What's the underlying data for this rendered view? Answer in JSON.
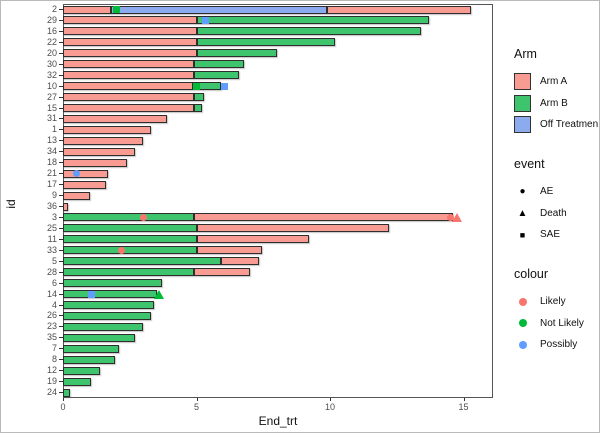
{
  "axes": {
    "x_title": "End_trt",
    "y_title": "id"
  },
  "glyphs": {
    "circle": "●",
    "triangle": "▲",
    "square": "■"
  },
  "legend": {
    "arm": {
      "title": "Arm",
      "items": [
        {
          "label": "Arm A",
          "color": "#F89B92"
        },
        {
          "label": "Arm B",
          "color": "#3EC46C"
        },
        {
          "label": "Off Treatmen",
          "color": "#8CABEF"
        }
      ]
    },
    "event": {
      "title": "event",
      "items": [
        {
          "label": "AE",
          "shape": "circle"
        },
        {
          "label": "Death",
          "shape": "triangle"
        },
        {
          "label": "SAE",
          "shape": "square"
        }
      ]
    },
    "colour": {
      "title": "colour",
      "items": [
        {
          "label": "Likely",
          "color": "#F8766D"
        },
        {
          "label": "Not Likely",
          "color": "#00BA38"
        },
        {
          "label": "Possibly",
          "color": "#619CFF"
        }
      ]
    }
  },
  "chart_data": {
    "type": "bar",
    "subtype": "horizontal-stacked-swimmer",
    "title": "",
    "xlabel": "End_trt",
    "ylabel": "id",
    "xlim": [
      0,
      16.1
    ],
    "xticks": [
      0,
      5,
      10,
      15
    ],
    "grid": false,
    "legend_position": "right",
    "bar_stroke": "#2e2e2e",
    "arm_colors": {
      "A": "#F89B92",
      "B": "#3EC46C",
      "Off": "#8CABEF"
    },
    "event_shapes": {
      "AE": "circle",
      "Death": "triangle",
      "SAE": "square"
    },
    "colour_colors": {
      "Likely": "#F8766D",
      "Not Likely": "#00BA38",
      "Possibly": "#619CFF"
    },
    "rows": [
      {
        "id": "2",
        "segments": [
          {
            "arm": "A",
            "start": 0,
            "end": 1.8
          },
          {
            "arm": "Off",
            "start": 1.8,
            "end": 9.9
          },
          {
            "arm": "A",
            "start": 9.9,
            "end": 15.3
          }
        ],
        "markers": [
          {
            "event": "SAE",
            "colour": "Not Likely",
            "x": 2.0
          }
        ]
      },
      {
        "id": "29",
        "segments": [
          {
            "arm": "A",
            "start": 0,
            "end": 5
          },
          {
            "arm": "B",
            "start": 5,
            "end": 13.7
          }
        ],
        "markers": [
          {
            "event": "SAE",
            "colour": "Possibly",
            "x": 5.35
          }
        ]
      },
      {
        "id": "16",
        "segments": [
          {
            "arm": "A",
            "start": 0,
            "end": 5
          },
          {
            "arm": "B",
            "start": 5,
            "end": 13.4
          }
        ],
        "markers": []
      },
      {
        "id": "22",
        "segments": [
          {
            "arm": "A",
            "start": 0,
            "end": 5
          },
          {
            "arm": "B",
            "start": 5,
            "end": 10.2
          }
        ],
        "markers": []
      },
      {
        "id": "20",
        "segments": [
          {
            "arm": "A",
            "start": 0,
            "end": 5
          },
          {
            "arm": "B",
            "start": 5,
            "end": 8.0
          }
        ],
        "markers": []
      },
      {
        "id": "30",
        "segments": [
          {
            "arm": "A",
            "start": 0,
            "end": 4.9
          },
          {
            "arm": "B",
            "start": 4.9,
            "end": 6.8
          }
        ],
        "markers": []
      },
      {
        "id": "32",
        "segments": [
          {
            "arm": "A",
            "start": 0,
            "end": 4.9
          },
          {
            "arm": "B",
            "start": 4.9,
            "end": 6.6
          }
        ],
        "markers": []
      },
      {
        "id": "10",
        "segments": [
          {
            "arm": "A",
            "start": 0,
            "end": 4.85
          },
          {
            "arm": "B",
            "start": 4.85,
            "end": 5.9
          }
        ],
        "markers": [
          {
            "event": "SAE",
            "colour": "Not Likely",
            "x": 5.0
          },
          {
            "event": "SAE",
            "colour": "Possibly",
            "x": 6.05
          }
        ]
      },
      {
        "id": "27",
        "segments": [
          {
            "arm": "A",
            "start": 0,
            "end": 4.9
          },
          {
            "arm": "B",
            "start": 4.9,
            "end": 5.3
          }
        ],
        "markers": []
      },
      {
        "id": "15",
        "segments": [
          {
            "arm": "A",
            "start": 0,
            "end": 4.9
          },
          {
            "arm": "B",
            "start": 4.9,
            "end": 5.2
          }
        ],
        "markers": []
      },
      {
        "id": "31",
        "segments": [
          {
            "arm": "A",
            "start": 0,
            "end": 3.9
          }
        ],
        "markers": []
      },
      {
        "id": "1",
        "segments": [
          {
            "arm": "A",
            "start": 0,
            "end": 3.3
          }
        ],
        "markers": []
      },
      {
        "id": "13",
        "segments": [
          {
            "arm": "A",
            "start": 0,
            "end": 3.0
          }
        ],
        "markers": []
      },
      {
        "id": "34",
        "segments": [
          {
            "arm": "A",
            "start": 0,
            "end": 2.7
          }
        ],
        "markers": []
      },
      {
        "id": "18",
        "segments": [
          {
            "arm": "A",
            "start": 0,
            "end": 2.4
          }
        ],
        "markers": []
      },
      {
        "id": "21",
        "segments": [
          {
            "arm": "A",
            "start": 0,
            "end": 1.7
          }
        ],
        "markers": [
          {
            "event": "AE",
            "colour": "Possibly",
            "x": 0.5
          }
        ]
      },
      {
        "id": "17",
        "segments": [
          {
            "arm": "A",
            "start": 0,
            "end": 1.6
          }
        ],
        "markers": []
      },
      {
        "id": "9",
        "segments": [
          {
            "arm": "A",
            "start": 0,
            "end": 1.0
          }
        ],
        "markers": []
      },
      {
        "id": "36",
        "segments": [
          {
            "arm": "A",
            "start": 0,
            "end": 0.2
          }
        ],
        "markers": []
      },
      {
        "id": "3",
        "segments": [
          {
            "arm": "B",
            "start": 0,
            "end": 4.9
          },
          {
            "arm": "A",
            "start": 4.9,
            "end": 14.6
          }
        ],
        "markers": [
          {
            "event": "AE",
            "colour": "Likely",
            "x": 3.0
          },
          {
            "event": "AE",
            "colour": "Likely",
            "x": 14.5
          },
          {
            "event": "Death",
            "colour": "Likely",
            "x": 14.75
          }
        ]
      },
      {
        "id": "25",
        "segments": [
          {
            "arm": "B",
            "start": 0,
            "end": 5
          },
          {
            "arm": "A",
            "start": 5,
            "end": 12.2
          }
        ],
        "markers": []
      },
      {
        "id": "11",
        "segments": [
          {
            "arm": "B",
            "start": 0,
            "end": 5
          },
          {
            "arm": "A",
            "start": 5,
            "end": 9.2
          }
        ],
        "markers": []
      },
      {
        "id": "33",
        "segments": [
          {
            "arm": "B",
            "start": 0,
            "end": 5
          },
          {
            "arm": "A",
            "start": 5,
            "end": 7.45
          }
        ],
        "markers": [
          {
            "event": "AE",
            "colour": "Likely",
            "x": 2.2
          }
        ]
      },
      {
        "id": "5",
        "segments": [
          {
            "arm": "B",
            "start": 0,
            "end": 5.9
          },
          {
            "arm": "A",
            "start": 5.9,
            "end": 7.35
          }
        ],
        "markers": []
      },
      {
        "id": "28",
        "segments": [
          {
            "arm": "B",
            "start": 0,
            "end": 4.9
          },
          {
            "arm": "A",
            "start": 4.9,
            "end": 7.0
          }
        ],
        "markers": []
      },
      {
        "id": "6",
        "segments": [
          {
            "arm": "B",
            "start": 0,
            "end": 3.7
          }
        ],
        "markers": []
      },
      {
        "id": "14",
        "segments": [
          {
            "arm": "B",
            "start": 0,
            "end": 3.5
          }
        ],
        "markers": [
          {
            "event": "SAE",
            "colour": "Possibly",
            "x": 1.05
          },
          {
            "event": "Death",
            "colour": "Not Likely",
            "x": 3.6
          }
        ]
      },
      {
        "id": "4",
        "segments": [
          {
            "arm": "B",
            "start": 0,
            "end": 3.4
          }
        ],
        "markers": []
      },
      {
        "id": "26",
        "segments": [
          {
            "arm": "B",
            "start": 0,
            "end": 3.3
          }
        ],
        "markers": []
      },
      {
        "id": "23",
        "segments": [
          {
            "arm": "B",
            "start": 0,
            "end": 3.0
          }
        ],
        "markers": []
      },
      {
        "id": "35",
        "segments": [
          {
            "arm": "B",
            "start": 0,
            "end": 2.7
          }
        ],
        "markers": []
      },
      {
        "id": "7",
        "segments": [
          {
            "arm": "B",
            "start": 0,
            "end": 2.1
          }
        ],
        "markers": []
      },
      {
        "id": "8",
        "segments": [
          {
            "arm": "B",
            "start": 0,
            "end": 1.95
          }
        ],
        "markers": []
      },
      {
        "id": "12",
        "segments": [
          {
            "arm": "B",
            "start": 0,
            "end": 1.4
          }
        ],
        "markers": []
      },
      {
        "id": "19",
        "segments": [
          {
            "arm": "B",
            "start": 0,
            "end": 1.05
          }
        ],
        "markers": []
      },
      {
        "id": "24",
        "segments": [
          {
            "arm": "B",
            "start": 0,
            "end": 0.25
          }
        ],
        "markers": []
      }
    ]
  }
}
